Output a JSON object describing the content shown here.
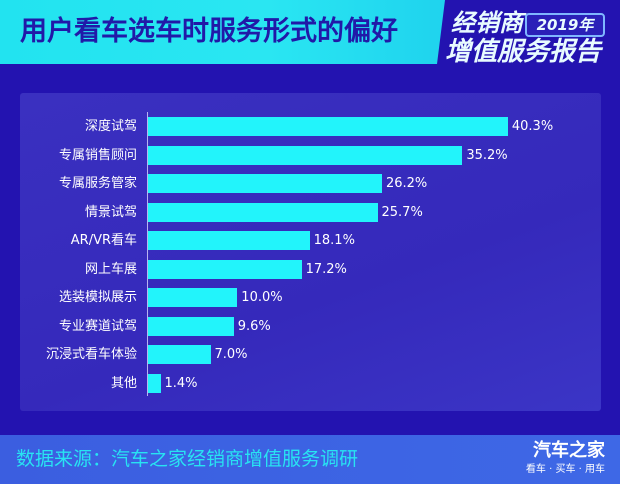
{
  "header": {
    "title": "用户看车选车时服务形式的偏好",
    "badge": {
      "line1": "经销商",
      "year": "2019年",
      "line2": "增值服务报告"
    }
  },
  "footer": {
    "source": "数据来源：汽车之家经销商增值服务调研",
    "logo_main": "汽车之家",
    "logo_sub": "看车 · 买车 · 用车"
  },
  "colors": {
    "bar": "#22f4fb",
    "background": "#2313b0",
    "panel": "#3529bb",
    "header_band": "#22e3f0",
    "title_text": "#2119a8",
    "footer_band": "#3b5ee0",
    "source_text": "#28e3f2"
  },
  "chart_data": {
    "type": "bar",
    "orientation": "horizontal",
    "title": "用户看车选车时服务形式的偏好",
    "xlabel": "",
    "ylabel": "",
    "categories": [
      "深度试驾",
      "专属销售顾问",
      "专属服务管家",
      "情景试驾",
      "AR/VR看车",
      "网上车展",
      "选装模拟展示",
      "专业赛道试驾",
      "沉浸式看车体验",
      "其他"
    ],
    "values": [
      40.3,
      35.2,
      26.2,
      25.7,
      18.1,
      17.2,
      10.0,
      9.6,
      7.0,
      1.4
    ],
    "value_labels": [
      "40.3%",
      "35.2%",
      "26.2%",
      "25.7%",
      "18.1%",
      "17.2%",
      "10.0%",
      "9.6%",
      "7.0%",
      "1.4%"
    ],
    "unit": "%",
    "grid": false,
    "legend": null,
    "source": "数据来源：汽车之家经销商增值服务调研"
  }
}
